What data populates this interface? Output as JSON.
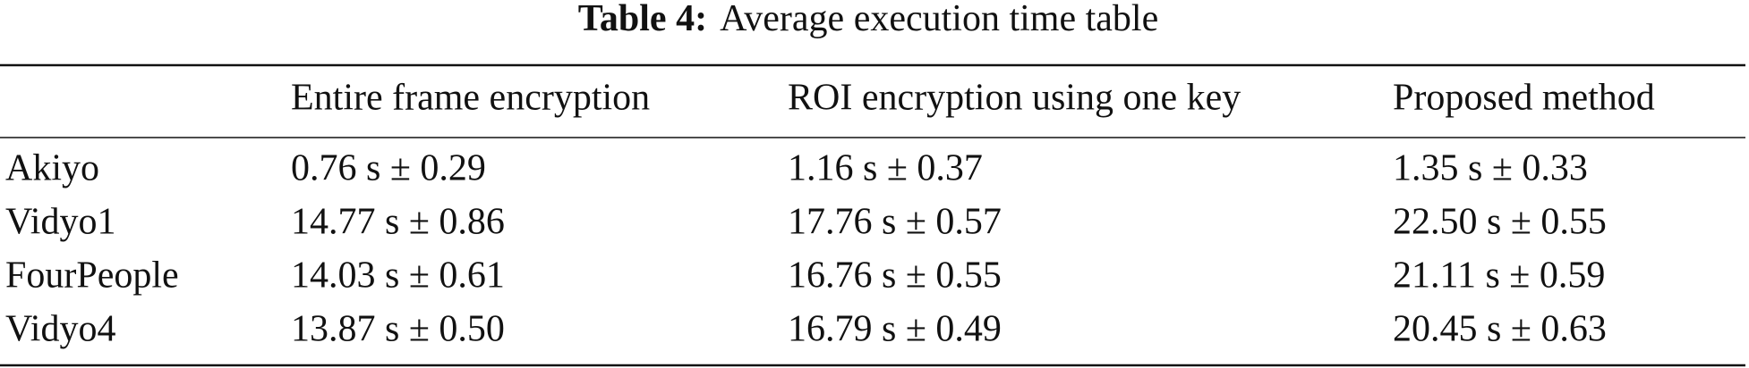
{
  "caption": {
    "label": "Table 4:",
    "text": "Average execution time table"
  },
  "table": {
    "columns": [
      "Entire frame encryption",
      "ROI encryption using one key",
      "Proposed method"
    ],
    "rows": [
      {
        "name": "Akiyo",
        "cells": [
          "0.76 s ± 0.29",
          "1.16 s ± 0.37",
          "1.35 s ± 0.33"
        ]
      },
      {
        "name": "Vidyo1",
        "cells": [
          "14.77 s ± 0.86",
          "17.76 s ± 0.57",
          "22.50 s ± 0.55"
        ]
      },
      {
        "name": "FourPeople",
        "cells": [
          "14.03 s ± 0.61",
          "16.76 s ± 0.55",
          "21.11 s ± 0.59"
        ]
      },
      {
        "name": "Vidyo4",
        "cells": [
          "13.87 s ± 0.50",
          "16.79 s ± 0.49",
          "20.45 s ± 0.63"
        ]
      }
    ]
  }
}
